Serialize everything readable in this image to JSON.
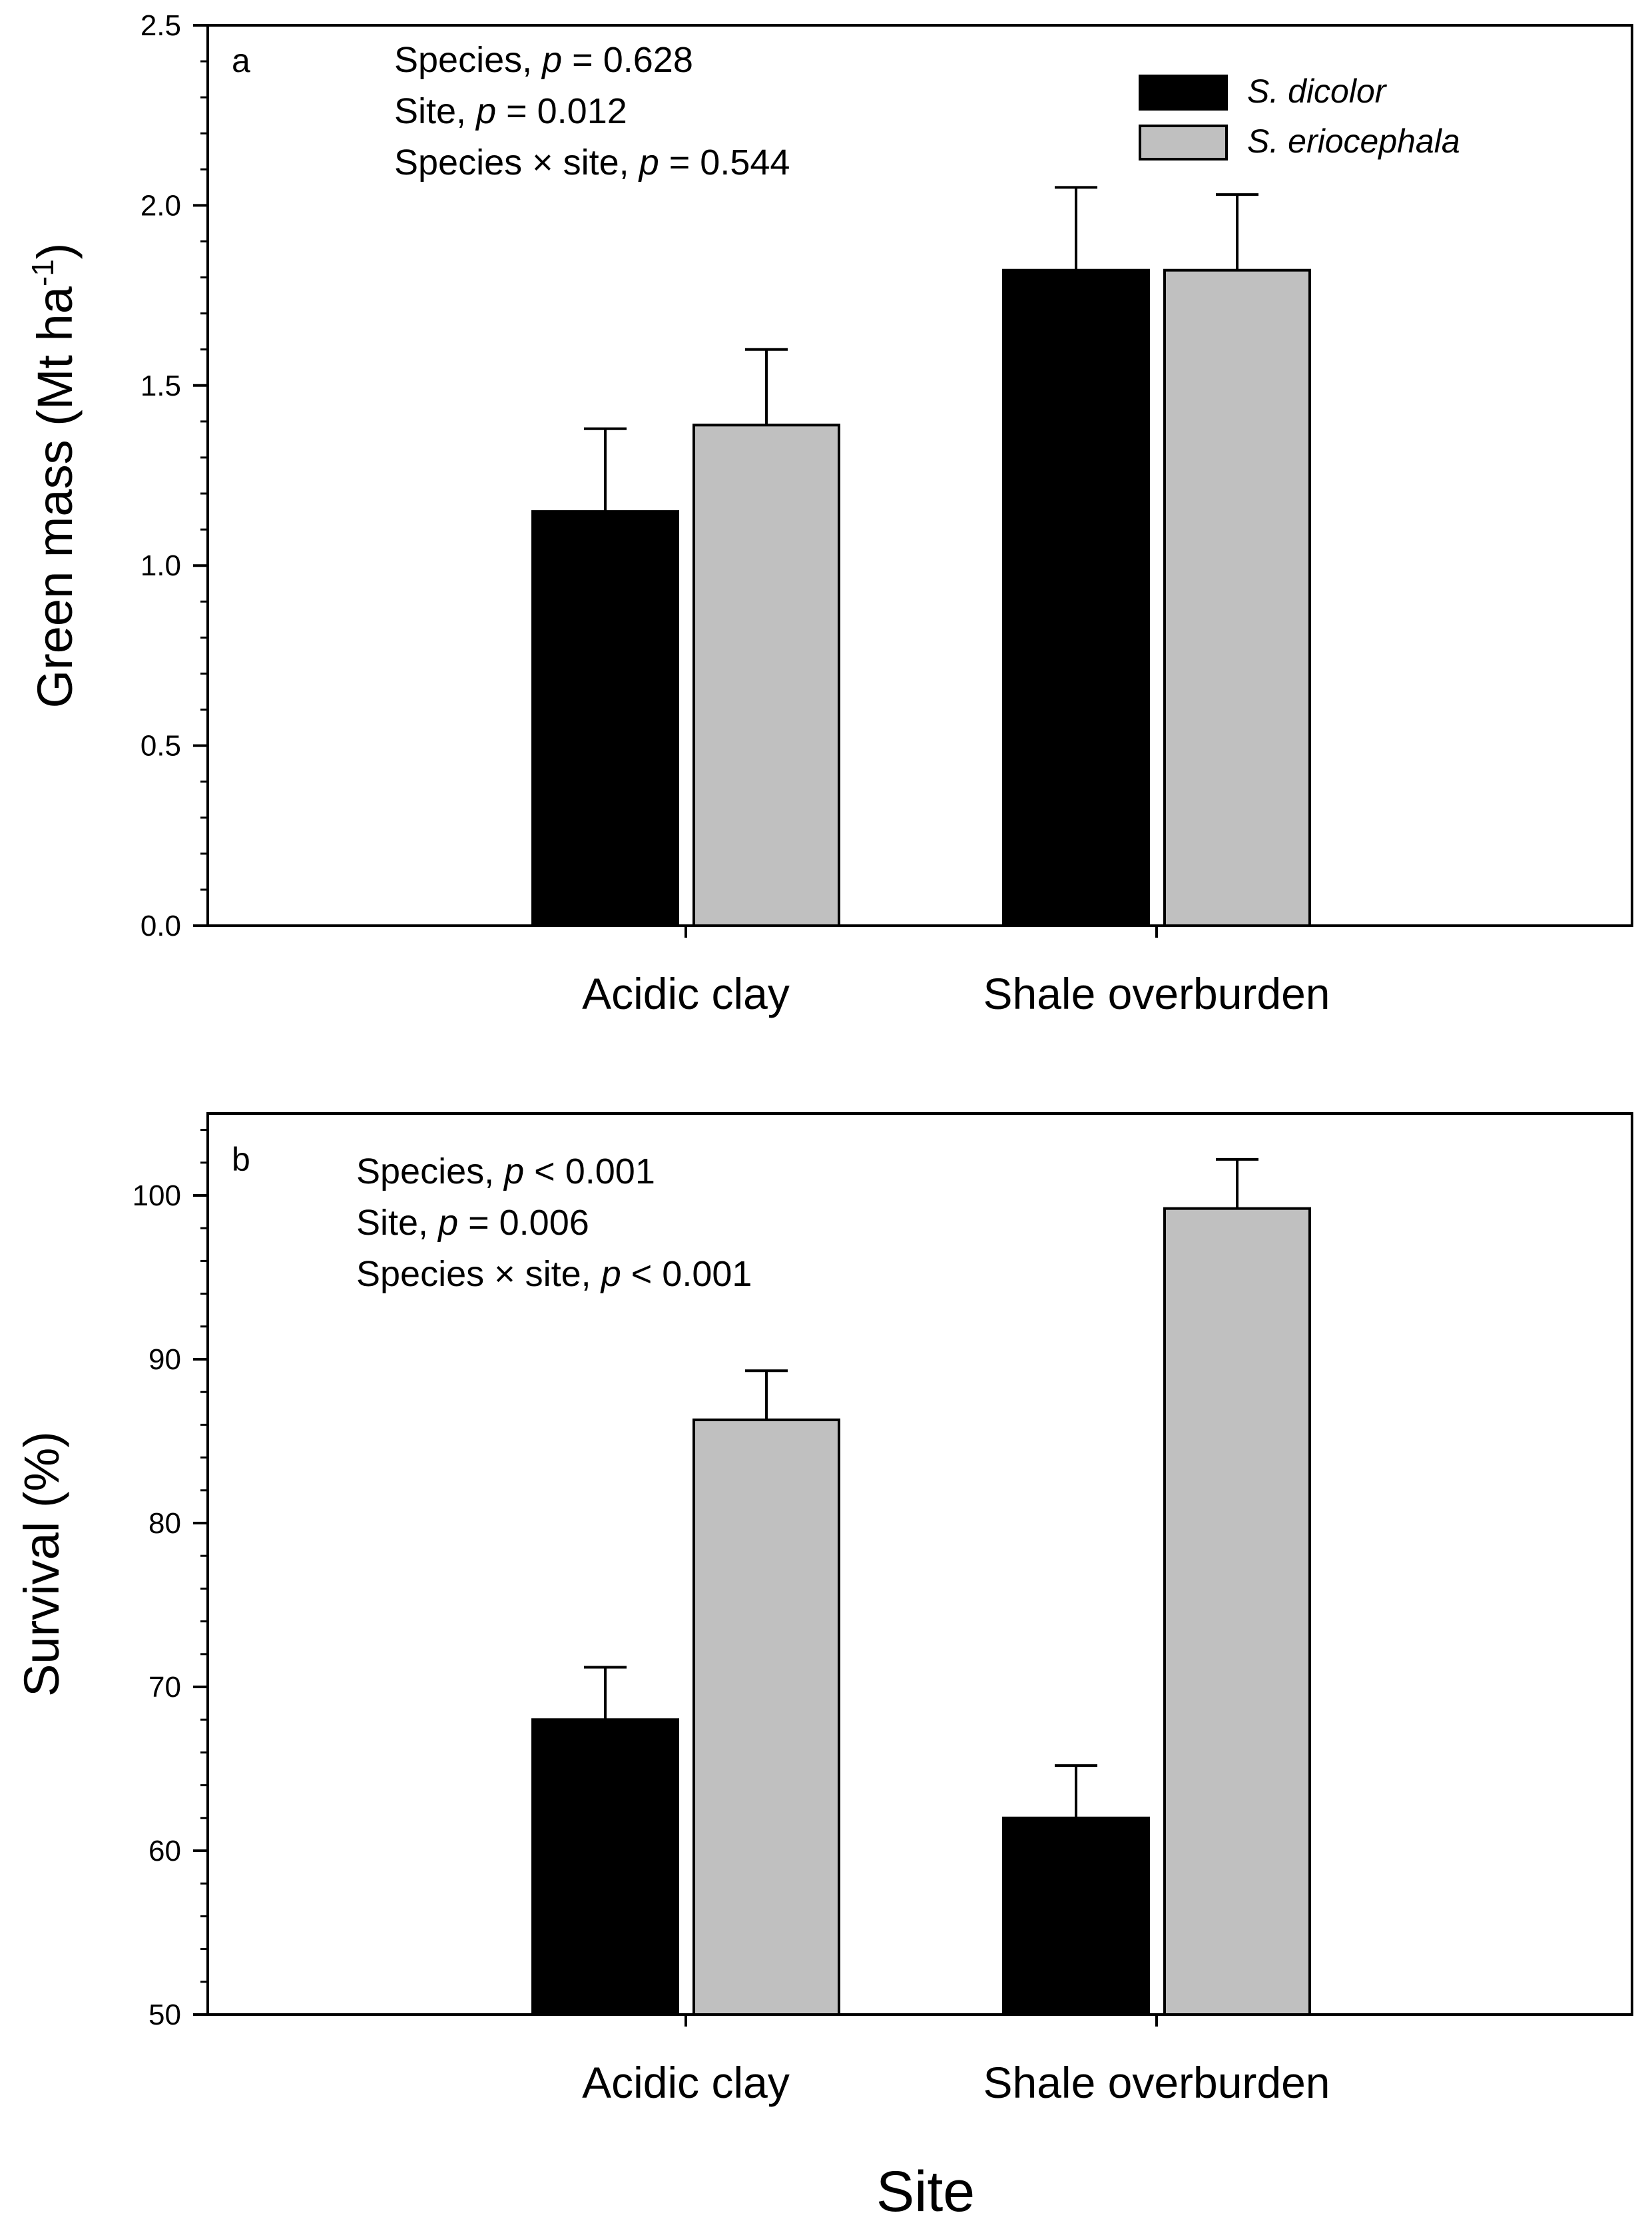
{
  "figure": {
    "x_title": "Site"
  },
  "chart_data": [
    {
      "type": "bar",
      "panel": "a",
      "categories": [
        "Acidic clay",
        "Shale overburden"
      ],
      "series": [
        {
          "name": "S. dicolor",
          "color": "#000000",
          "values": [
            1.15,
            1.82
          ],
          "errors": [
            0.23,
            0.23
          ]
        },
        {
          "name": "S. eriocephala",
          "color": "#c0c0c0",
          "values": [
            1.39,
            1.82
          ],
          "errors": [
            0.21,
            0.21
          ]
        }
      ],
      "ylabel": "Green mass (Mt ha",
      "ylabel_sup": "-1",
      "ylabel_suffix": ")",
      "ylim": [
        0,
        2.5
      ],
      "yticks": [
        "0.0",
        "0.5",
        "1.0",
        "1.5",
        "2.0",
        "2.5"
      ],
      "ytick_values": [
        0,
        0.5,
        1.0,
        1.5,
        2.0,
        2.5
      ],
      "minor_tick_step": 0.1,
      "annotations": [
        {
          "prefix": "Species, ",
          "p": "p",
          "suffix": " = 0.628"
        },
        {
          "prefix": "Site, ",
          "p": "p",
          "suffix": " = 0.012"
        },
        {
          "prefix": "Species × site, ",
          "p": "p",
          "suffix": " = 0.544"
        }
      ],
      "legend": {
        "position": "top-right",
        "show": true
      }
    },
    {
      "type": "bar",
      "panel": "b",
      "categories": [
        "Acidic clay",
        "Shale overburden"
      ],
      "series": [
        {
          "name": "S. dicolor",
          "color": "#000000",
          "values": [
            68,
            62
          ],
          "errors": [
            3.2,
            3.2
          ]
        },
        {
          "name": "S. eriocephala",
          "color": "#c0c0c0",
          "values": [
            86.3,
            99.2
          ],
          "errors": [
            3.0,
            3.0
          ]
        }
      ],
      "ylabel": "Survival (%)",
      "ylabel_sup": "",
      "ylabel_suffix": "",
      "ylim": [
        50,
        105
      ],
      "yticks": [
        "50",
        "60",
        "70",
        "80",
        "90",
        "100"
      ],
      "ytick_values": [
        50,
        60,
        70,
        80,
        90,
        100
      ],
      "minor_tick_step": 2,
      "annotations": [
        {
          "prefix": "Species, ",
          "p": "p",
          "suffix": " < 0.001"
        },
        {
          "prefix": "Site, ",
          "p": "p",
          "suffix": " = 0.006"
        },
        {
          "prefix": "Species × site, ",
          "p": "p",
          "suffix": " < 0.001"
        }
      ],
      "legend": {
        "position": "none",
        "show": false
      }
    }
  ]
}
